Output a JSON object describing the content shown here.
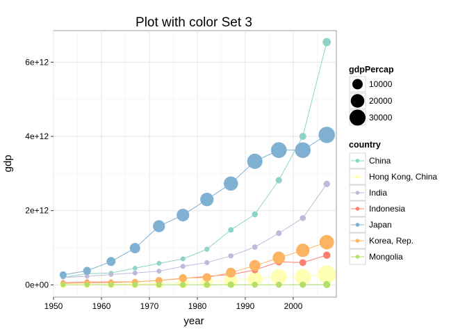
{
  "chart_data": {
    "type": "scatter",
    "title": "Plot with color Set 3",
    "xlabel": "year",
    "ylabel": "gdp",
    "xlim": [
      1950,
      2009
    ],
    "ylim": [
      -330000000000.0,
      6850000000000.0
    ],
    "x_ticks": [
      1950,
      1960,
      1970,
      1980,
      1990,
      2000
    ],
    "x_tick_labels": [
      "1950",
      "1960",
      "1970",
      "1980",
      "1990",
      "2000"
    ],
    "y_ticks": [
      0,
      2000000000000.0,
      4000000000000.0,
      6000000000000.0
    ],
    "y_tick_labels": [
      "0e+00",
      "2e+12",
      "4e+12",
      "6e+12"
    ],
    "grid": true,
    "x": [
      1952,
      1957,
      1962,
      1967,
      1972,
      1977,
      1982,
      1987,
      1992,
      1997,
      2002,
      2007
    ],
    "size_legend": {
      "title": "gdpPercap",
      "values": [
        10000,
        20000,
        30000
      ],
      "labels": [
        "10000",
        "20000",
        "30000"
      ],
      "color": "#000000"
    },
    "color_legend_title": "country",
    "series": [
      {
        "name": "China",
        "color": "#8DD3C7",
        "values": [
          200000000000.0,
          300000000000.0,
          320000000000.0,
          450000000000.0,
          580000000000.0,
          700000000000.0,
          960000000000.0,
          1480000000000.0,
          1900000000000.0,
          2820000000000.0,
          4000000000000.0,
          6540000000000.0
        ],
        "gdpPercap": [
          400,
          576,
          488,
          613,
          677,
          741,
          962,
          1379,
          1656,
          2289,
          3119,
          4959
        ]
      },
      {
        "name": "Hong Kong, China",
        "color": "#FFFFB3",
        "values": [
          7000000000.0,
          10000000000.0,
          16000000000.0,
          25000000000.0,
          35000000000.0,
          53000000000.0,
          77000000000.0,
          114000000000.0,
          160000000000.0,
          210000000000.0,
          210000000000.0,
          280000000000.0
        ],
        "gdpPercap": [
          3054,
          3629,
          4693,
          6198,
          8316,
          11186,
          14561,
          20038,
          24757,
          28378,
          30209,
          39725
        ]
      },
      {
        "name": "India",
        "color": "#BEBADA",
        "values": [
          200000000000.0,
          230000000000.0,
          280000000000.0,
          320000000000.0,
          370000000000.0,
          500000000000.0,
          600000000000.0,
          780000000000.0,
          1020000000000.0,
          1390000000000.0,
          1800000000000.0,
          2720000000000.0
        ],
        "gdpPercap": [
          547,
          590,
          658,
          700,
          724,
          813,
          856,
          977,
          1164,
          1458,
          1747,
          2452
        ]
      },
      {
        "name": "Indonesia",
        "color": "#FB8072",
        "values": [
          60000000000.0,
          80000000000.0,
          80000000000.0,
          80000000000.0,
          120000000000.0,
          170000000000.0,
          230000000000.0,
          280000000000.0,
          400000000000.0,
          620000000000.0,
          600000000000.0,
          800000000000.0
        ],
        "gdpPercap": [
          750,
          859,
          849,
          762,
          1111,
          1383,
          1517,
          1748,
          2383,
          3119,
          2873,
          3541
        ]
      },
      {
        "name": "Japan",
        "color": "#80B1D3",
        "values": [
          270000000000.0,
          380000000000.0,
          630000000000.0,
          990000000000.0,
          1580000000000.0,
          1880000000000.0,
          2300000000000.0,
          2730000000000.0,
          3330000000000.0,
          3630000000000.0,
          3630000000000.0,
          4040000000000.0
        ],
        "gdpPercap": [
          3217,
          4318,
          6577,
          9848,
          14779,
          16610,
          19384,
          22376,
          26825,
          28817,
          28605,
          31656
        ]
      },
      {
        "name": "Korea, Rep.",
        "color": "#FDB462",
        "values": [
          40000000000.0,
          50000000000.0,
          60000000000.0,
          80000000000.0,
          120000000000.0,
          180000000000.0,
          200000000000.0,
          330000000000.0,
          520000000000.0,
          730000000000.0,
          930000000000.0,
          1150000000000.0
        ],
        "gdpPercap": [
          1031,
          1488,
          1536,
          2029,
          3031,
          4657,
          5623,
          8533,
          12104,
          15994,
          19234,
          23348
        ]
      },
      {
        "name": "Mongolia",
        "color": "#B3DE69",
        "values": [
          800000000.0,
          1000000000.0,
          1300000000.0,
          1600000000.0,
          2000000000.0,
          3000000000.0,
          3700000000.0,
          4700000000.0,
          4100000000.0,
          4100000000.0,
          4900000000.0,
          8300000000.0
        ],
        "gdpPercap": [
          786,
          912,
          1056,
          1226,
          1421,
          1647,
          2000,
          2338,
          1785,
          1902,
          2140,
          3096
        ]
      }
    ]
  }
}
